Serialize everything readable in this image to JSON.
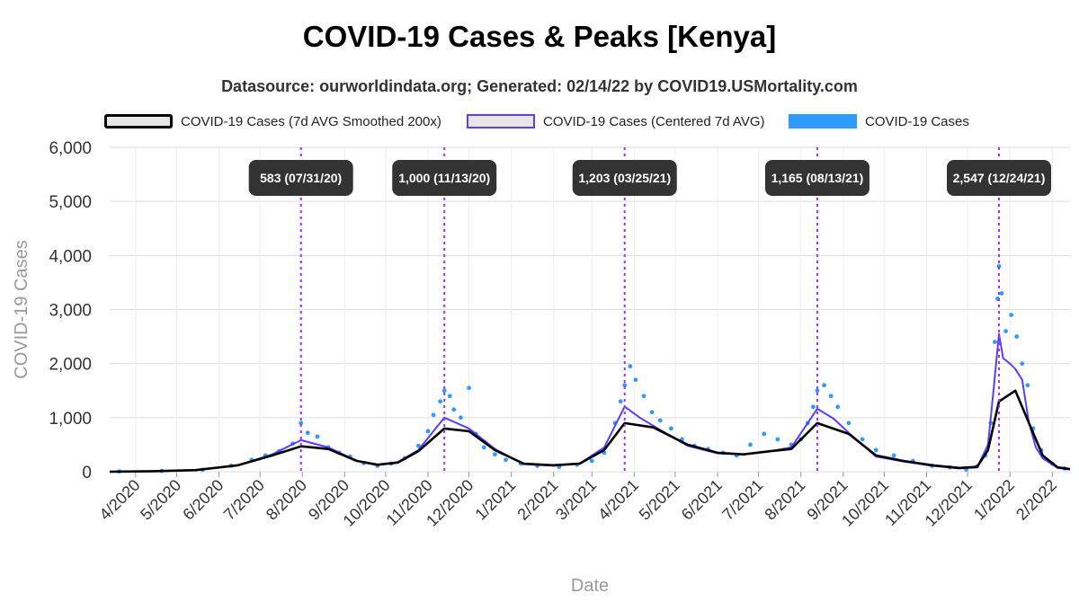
{
  "title": "COVID-19 Cases & Peaks [Kenya]",
  "subtitle": "Datasource: ourworldindata.org; Generated: 02/14/22 by COVID19.USMortality.com",
  "legend": {
    "smoothed": "COVID-19 Cases (7d AVG Smoothed 200x)",
    "centered": "COVID-19 Cases (Centered 7d AVG)",
    "cases": "COVID-19 Cases"
  },
  "colors": {
    "smoothed": "#000000",
    "centered": "#5a3dff",
    "cases": "#2f9bff",
    "peak_line": "#9b30ff",
    "peak_label_bg": "#333333",
    "grid": "#dddddd"
  },
  "chart_data": {
    "type": "line",
    "title": "COVID-19 Cases & Peaks [Kenya]",
    "xlabel": "Date",
    "ylabel": "COVID-19 Cases",
    "xlim": [
      "2020-03-13",
      "2022-02-14"
    ],
    "ylim": [
      0,
      6000
    ],
    "yticks": [
      0,
      1000,
      2000,
      3000,
      4000,
      5000,
      6000
    ],
    "ytick_labels": [
      "0",
      "1,000",
      "2,000",
      "3,000",
      "4,000",
      "5,000",
      "6,000"
    ],
    "xticks": [
      "2020-04-01",
      "2020-05-01",
      "2020-06-01",
      "2020-07-01",
      "2020-08-01",
      "2020-09-01",
      "2020-10-01",
      "2020-11-01",
      "2020-12-01",
      "2021-01-01",
      "2021-02-01",
      "2021-03-01",
      "2021-04-01",
      "2021-05-01",
      "2021-06-01",
      "2021-07-01",
      "2021-08-01",
      "2021-09-01",
      "2021-10-01",
      "2021-11-01",
      "2021-12-01",
      "2022-01-01",
      "2022-02-01"
    ],
    "xtick_labels": [
      "4/2020",
      "5/2020",
      "6/2020",
      "7/2020",
      "8/2020",
      "9/2020",
      "10/2020",
      "11/2020",
      "12/2020",
      "1/2021",
      "2/2021",
      "3/2021",
      "4/2021",
      "5/2021",
      "6/2021",
      "7/2021",
      "8/2021",
      "9/2021",
      "10/2021",
      "11/2021",
      "12/2021",
      "1/2022",
      "2/2022"
    ],
    "grid": true,
    "legend_position": "top",
    "peaks": [
      {
        "date": "2020-07-31",
        "label": "583 (07/31/20)"
      },
      {
        "date": "2020-11-13",
        "label": "1,000 (11/13/20)"
      },
      {
        "date": "2021-03-25",
        "label": "1,203 (03/25/21)"
      },
      {
        "date": "2021-08-13",
        "label": "1,165 (08/13/21)"
      },
      {
        "date": "2021-12-24",
        "label": "2,547 (12/24/21)"
      }
    ],
    "series": [
      {
        "name": "COVID-19 Cases (7d AVG Smoothed 200x)",
        "kind": "line",
        "x": [
          "2020-03-13",
          "2020-04-15",
          "2020-05-15",
          "2020-06-15",
          "2020-07-10",
          "2020-07-31",
          "2020-08-20",
          "2020-09-10",
          "2020-09-25",
          "2020-10-10",
          "2020-10-25",
          "2020-11-13",
          "2020-12-01",
          "2020-12-20",
          "2021-01-10",
          "2021-02-01",
          "2021-02-20",
          "2021-03-10",
          "2021-03-25",
          "2021-04-15",
          "2021-05-10",
          "2021-06-01",
          "2021-06-20",
          "2021-07-10",
          "2021-07-25",
          "2021-08-13",
          "2021-09-05",
          "2021-09-25",
          "2021-10-15",
          "2021-11-05",
          "2021-11-25",
          "2021-12-08",
          "2021-12-16",
          "2021-12-24",
          "2022-01-05",
          "2022-01-15",
          "2022-01-25",
          "2022-02-05",
          "2022-02-14"
        ],
        "y": [
          0,
          10,
          30,
          120,
          300,
          470,
          420,
          200,
          130,
          170,
          380,
          800,
          750,
          400,
          150,
          120,
          150,
          400,
          900,
          820,
          500,
          350,
          320,
          380,
          420,
          900,
          700,
          300,
          200,
          120,
          70,
          90,
          400,
          1300,
          1500,
          900,
          300,
          80,
          50
        ]
      },
      {
        "name": "COVID-19 Cases (Centered 7d AVG)",
        "kind": "line",
        "x": [
          "2020-03-13",
          "2020-04-15",
          "2020-05-15",
          "2020-06-15",
          "2020-07-10",
          "2020-07-31",
          "2020-08-20",
          "2020-09-10",
          "2020-09-25",
          "2020-10-10",
          "2020-10-25",
          "2020-11-13",
          "2020-12-01",
          "2020-12-20",
          "2021-01-10",
          "2021-02-01",
          "2021-02-20",
          "2021-03-10",
          "2021-03-25",
          "2021-04-05",
          "2021-04-15",
          "2021-05-10",
          "2021-06-01",
          "2021-06-20",
          "2021-07-10",
          "2021-07-25",
          "2021-08-13",
          "2021-08-25",
          "2021-09-05",
          "2021-09-25",
          "2021-10-15",
          "2021-11-05",
          "2021-11-25",
          "2021-12-08",
          "2021-12-16",
          "2021-12-20",
          "2021-12-24",
          "2021-12-27",
          "2022-01-01",
          "2022-01-05",
          "2022-01-10",
          "2022-01-15",
          "2022-01-20",
          "2022-01-25",
          "2022-02-05",
          "2022-02-14"
        ],
        "y": [
          0,
          10,
          30,
          120,
          320,
          583,
          450,
          200,
          120,
          180,
          400,
          1000,
          800,
          420,
          140,
          110,
          150,
          450,
          1203,
          1000,
          850,
          480,
          340,
          320,
          380,
          450,
          1165,
          980,
          720,
          280,
          190,
          110,
          60,
          80,
          500,
          1500,
          2547,
          2100,
          2000,
          1900,
          1700,
          900,
          450,
          250,
          70,
          40
        ]
      },
      {
        "name": "COVID-19 Cases",
        "kind": "scatter",
        "x": [
          "2020-03-20",
          "2020-04-20",
          "2020-05-20",
          "2020-06-10",
          "2020-06-25",
          "2020-07-05",
          "2020-07-15",
          "2020-07-25",
          "2020-07-31",
          "2020-08-05",
          "2020-08-12",
          "2020-08-20",
          "2020-08-28",
          "2020-09-05",
          "2020-09-15",
          "2020-09-25",
          "2020-10-05",
          "2020-10-15",
          "2020-10-25",
          "2020-11-01",
          "2020-11-05",
          "2020-11-10",
          "2020-11-13",
          "2020-11-17",
          "2020-11-20",
          "2020-11-25",
          "2020-12-01",
          "2020-12-06",
          "2020-12-12",
          "2020-12-20",
          "2020-12-28",
          "2021-01-08",
          "2021-01-20",
          "2021-02-05",
          "2021-02-18",
          "2021-03-01",
          "2021-03-10",
          "2021-03-18",
          "2021-03-22",
          "2021-03-25",
          "2021-03-29",
          "2021-04-02",
          "2021-04-08",
          "2021-04-14",
          "2021-04-20",
          "2021-04-28",
          "2021-05-06",
          "2021-05-15",
          "2021-05-25",
          "2021-06-05",
          "2021-06-15",
          "2021-06-25",
          "2021-07-05",
          "2021-07-15",
          "2021-07-25",
          "2021-08-01",
          "2021-08-06",
          "2021-08-10",
          "2021-08-13",
          "2021-08-18",
          "2021-08-23",
          "2021-08-28",
          "2021-09-05",
          "2021-09-15",
          "2021-09-25",
          "2021-10-08",
          "2021-10-22",
          "2021-11-05",
          "2021-11-18",
          "2021-11-30",
          "2021-12-08",
          "2021-12-14",
          "2021-12-18",
          "2021-12-21",
          "2021-12-23",
          "2021-12-24",
          "2021-12-26",
          "2021-12-29",
          "2022-01-02",
          "2022-01-06",
          "2022-01-10",
          "2022-01-14",
          "2022-01-18",
          "2022-01-24",
          "2022-02-01",
          "2022-02-10"
        ],
        "y": [
          5,
          15,
          35,
          110,
          220,
          300,
          380,
          520,
          900,
          720,
          650,
          450,
          350,
          280,
          160,
          110,
          150,
          250,
          480,
          750,
          1050,
          1300,
          1500,
          1400,
          1150,
          1000,
          1550,
          700,
          450,
          320,
          220,
          150,
          110,
          90,
          130,
          200,
          350,
          900,
          1300,
          1600,
          1950,
          1700,
          1400,
          1100,
          950,
          800,
          600,
          480,
          420,
          350,
          300,
          500,
          700,
          600,
          500,
          600,
          900,
          1200,
          1500,
          1600,
          1400,
          1200,
          900,
          600,
          400,
          300,
          200,
          110,
          80,
          40,
          100,
          300,
          900,
          2400,
          3200,
          3800,
          3300,
          2600,
          2900,
          2500,
          2000,
          1600,
          800,
          400,
          150,
          60
        ]
      }
    ]
  }
}
